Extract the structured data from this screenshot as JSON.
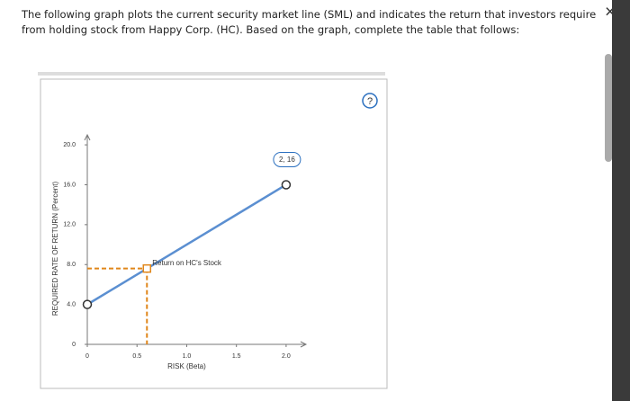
{
  "question": "The following graph plots the current security market line (SML) and indicates the return that investors require from holding stock from Happy Corp. (HC). Based on the graph, complete the table that follows:",
  "chart_data": {
    "type": "line",
    "x": [
      0,
      2
    ],
    "values": [
      4,
      16
    ],
    "color": "#5b8fd1",
    "xlim": [
      0,
      2.2
    ],
    "ylim": [
      0,
      21
    ],
    "xticks": [
      0,
      0.5,
      {
        "value": 1,
        "label": "1.0"
      },
      1.5,
      {
        "value": 2,
        "label": "2.0"
      }
    ],
    "yticks": [
      0,
      {
        "value": 4,
        "label": "4.0"
      },
      {
        "value": 8,
        "label": "8.0"
      },
      {
        "value": 12,
        "label": "12.0"
      },
      {
        "value": 16,
        "label": "16.0"
      },
      {
        "value": 20,
        "label": "20.0"
      }
    ],
    "xlabel": "RISK (Beta)",
    "ylabel": "REQUIRED RATE OF RETURN (Percent)",
    "point": {
      "x": 0.6,
      "y": 7.6,
      "label": "Return on HC's Stock",
      "color": "#e0861a"
    },
    "callout": "2, 16"
  }
}
